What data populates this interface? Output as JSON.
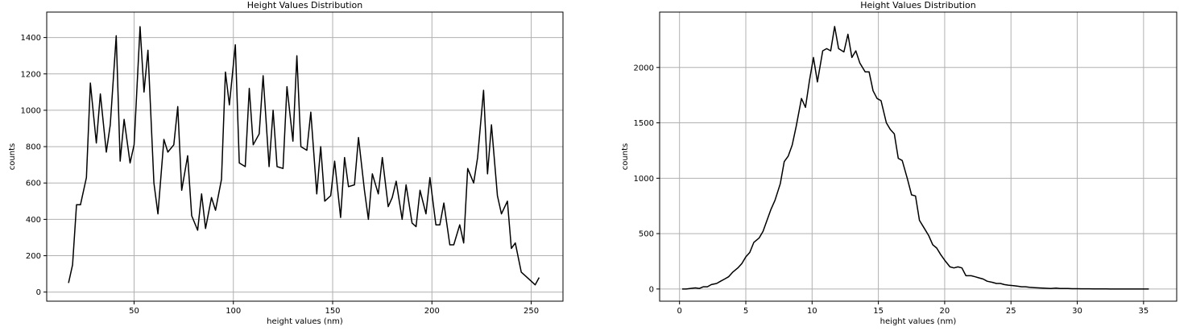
{
  "chart_data": [
    {
      "type": "line",
      "title": "Height Values Distribution",
      "xlabel": "height values (nm)",
      "ylabel": "counts",
      "xlim": [
        6,
        266
      ],
      "ylim": [
        -50,
        1540
      ],
      "grid": true,
      "xticks": [
        50,
        100,
        150,
        200,
        250
      ],
      "yticks": [
        0,
        200,
        400,
        600,
        800,
        1000,
        1200,
        1400
      ],
      "series": [
        {
          "color": "#000000",
          "x": [
            17,
            19,
            21,
            23,
            26,
            28,
            31,
            33,
            36,
            38,
            41,
            43,
            45,
            48,
            50,
            53,
            55,
            57,
            60,
            62,
            65,
            67,
            70,
            72,
            74,
            77,
            79,
            82,
            84,
            86,
            89,
            91,
            94,
            96,
            98,
            101,
            103,
            106,
            108,
            110,
            113,
            115,
            118,
            120,
            122,
            125,
            127,
            130,
            132,
            134,
            137,
            139,
            142,
            144,
            146,
            149,
            151,
            154,
            156,
            158,
            161,
            163,
            166,
            168,
            170,
            173,
            175,
            178,
            180,
            182,
            185,
            187,
            190,
            192,
            194,
            197,
            199,
            202,
            204,
            206,
            209,
            211,
            214,
            216,
            218,
            221,
            223,
            226,
            228,
            230,
            233,
            235,
            238,
            240,
            242,
            245,
            247,
            250,
            252,
            254
          ],
          "y": [
            50,
            150,
            480,
            480,
            630,
            1150,
            820,
            1090,
            770,
            920,
            1410,
            720,
            950,
            710,
            810,
            1460,
            1100,
            1330,
            600,
            430,
            840,
            770,
            810,
            1020,
            560,
            750,
            420,
            340,
            540,
            350,
            520,
            450,
            620,
            1210,
            1030,
            1360,
            710,
            690,
            1120,
            810,
            870,
            1190,
            690,
            1000,
            690,
            680,
            1130,
            830,
            1300,
            800,
            780,
            990,
            540,
            800,
            500,
            530,
            720,
            410,
            740,
            580,
            590,
            850,
            560,
            400,
            650,
            540,
            740,
            470,
            520,
            610,
            400,
            590,
            380,
            360,
            560,
            430,
            630,
            370,
            370,
            490,
            260,
            260,
            370,
            270,
            680,
            600,
            740,
            1110,
            650,
            920,
            530,
            430,
            500,
            240,
            270,
            110,
            90,
            60,
            40,
            80
          ]
        }
      ]
    },
    {
      "type": "line",
      "title": "Height Values Distribution",
      "xlabel": "height values (nm)",
      "ylabel": "counts",
      "xlim": [
        -1.5,
        37.5
      ],
      "ylim": [
        -110,
        2500
      ],
      "grid": true,
      "xticks": [
        0,
        5,
        10,
        15,
        20,
        25,
        30,
        35
      ],
      "yticks": [
        0,
        500,
        1000,
        1500,
        2000
      ],
      "series": [
        {
          "color": "#000000",
          "x": [
            0.2,
            0.5,
            0.8,
            1.2,
            1.5,
            1.8,
            2.1,
            2.4,
            2.8,
            3.1,
            3.4,
            3.7,
            4.0,
            4.4,
            4.7,
            5.0,
            5.3,
            5.6,
            6.0,
            6.3,
            6.6,
            6.9,
            7.2,
            7.6,
            7.9,
            8.2,
            8.5,
            8.8,
            9.2,
            9.5,
            9.8,
            10.1,
            10.4,
            10.8,
            11.1,
            11.4,
            11.7,
            12.0,
            12.4,
            12.7,
            13.0,
            13.3,
            13.6,
            14.0,
            14.3,
            14.6,
            14.9,
            15.2,
            15.6,
            15.9,
            16.2,
            16.5,
            16.8,
            17.2,
            17.5,
            17.8,
            18.1,
            18.4,
            18.8,
            19.1,
            19.4,
            19.7,
            20.0,
            20.4,
            20.7,
            21.0,
            21.3,
            21.6,
            22.0,
            22.3,
            22.6,
            22.9,
            23.2,
            23.6,
            23.9,
            24.2,
            24.5,
            24.8,
            25.2,
            25.5,
            25.8,
            26.1,
            26.4,
            26.8,
            27.1,
            27.4,
            27.7,
            28.0,
            28.4,
            28.7,
            29.0,
            29.3,
            29.6,
            30.0,
            30.3,
            30.6,
            30.9,
            31.2,
            31.6,
            31.9,
            32.2,
            32.5,
            32.8,
            33.2,
            33.5,
            33.8,
            34.1,
            34.4,
            34.8,
            35.1,
            35.4
          ],
          "y": [
            0,
            0,
            5,
            10,
            5,
            20,
            20,
            40,
            50,
            70,
            90,
            110,
            150,
            190,
            230,
            290,
            330,
            420,
            460,
            520,
            620,
            720,
            800,
            950,
            1150,
            1200,
            1300,
            1470,
            1720,
            1640,
            1880,
            2090,
            1870,
            2150,
            2170,
            2150,
            2370,
            2170,
            2140,
            2300,
            2090,
            2150,
            2040,
            1960,
            1960,
            1790,
            1720,
            1700,
            1500,
            1440,
            1400,
            1180,
            1160,
            990,
            850,
            840,
            620,
            560,
            480,
            400,
            370,
            310,
            260,
            200,
            190,
            200,
            190,
            120,
            120,
            110,
            100,
            90,
            70,
            60,
            50,
            50,
            40,
            35,
            30,
            25,
            20,
            20,
            15,
            12,
            10,
            8,
            6,
            5,
            8,
            5,
            4,
            4,
            3,
            3,
            2,
            2,
            2,
            1,
            1,
            1,
            1,
            0,
            0,
            0,
            0,
            0,
            0,
            0,
            0,
            0,
            0
          ]
        }
      ]
    }
  ]
}
